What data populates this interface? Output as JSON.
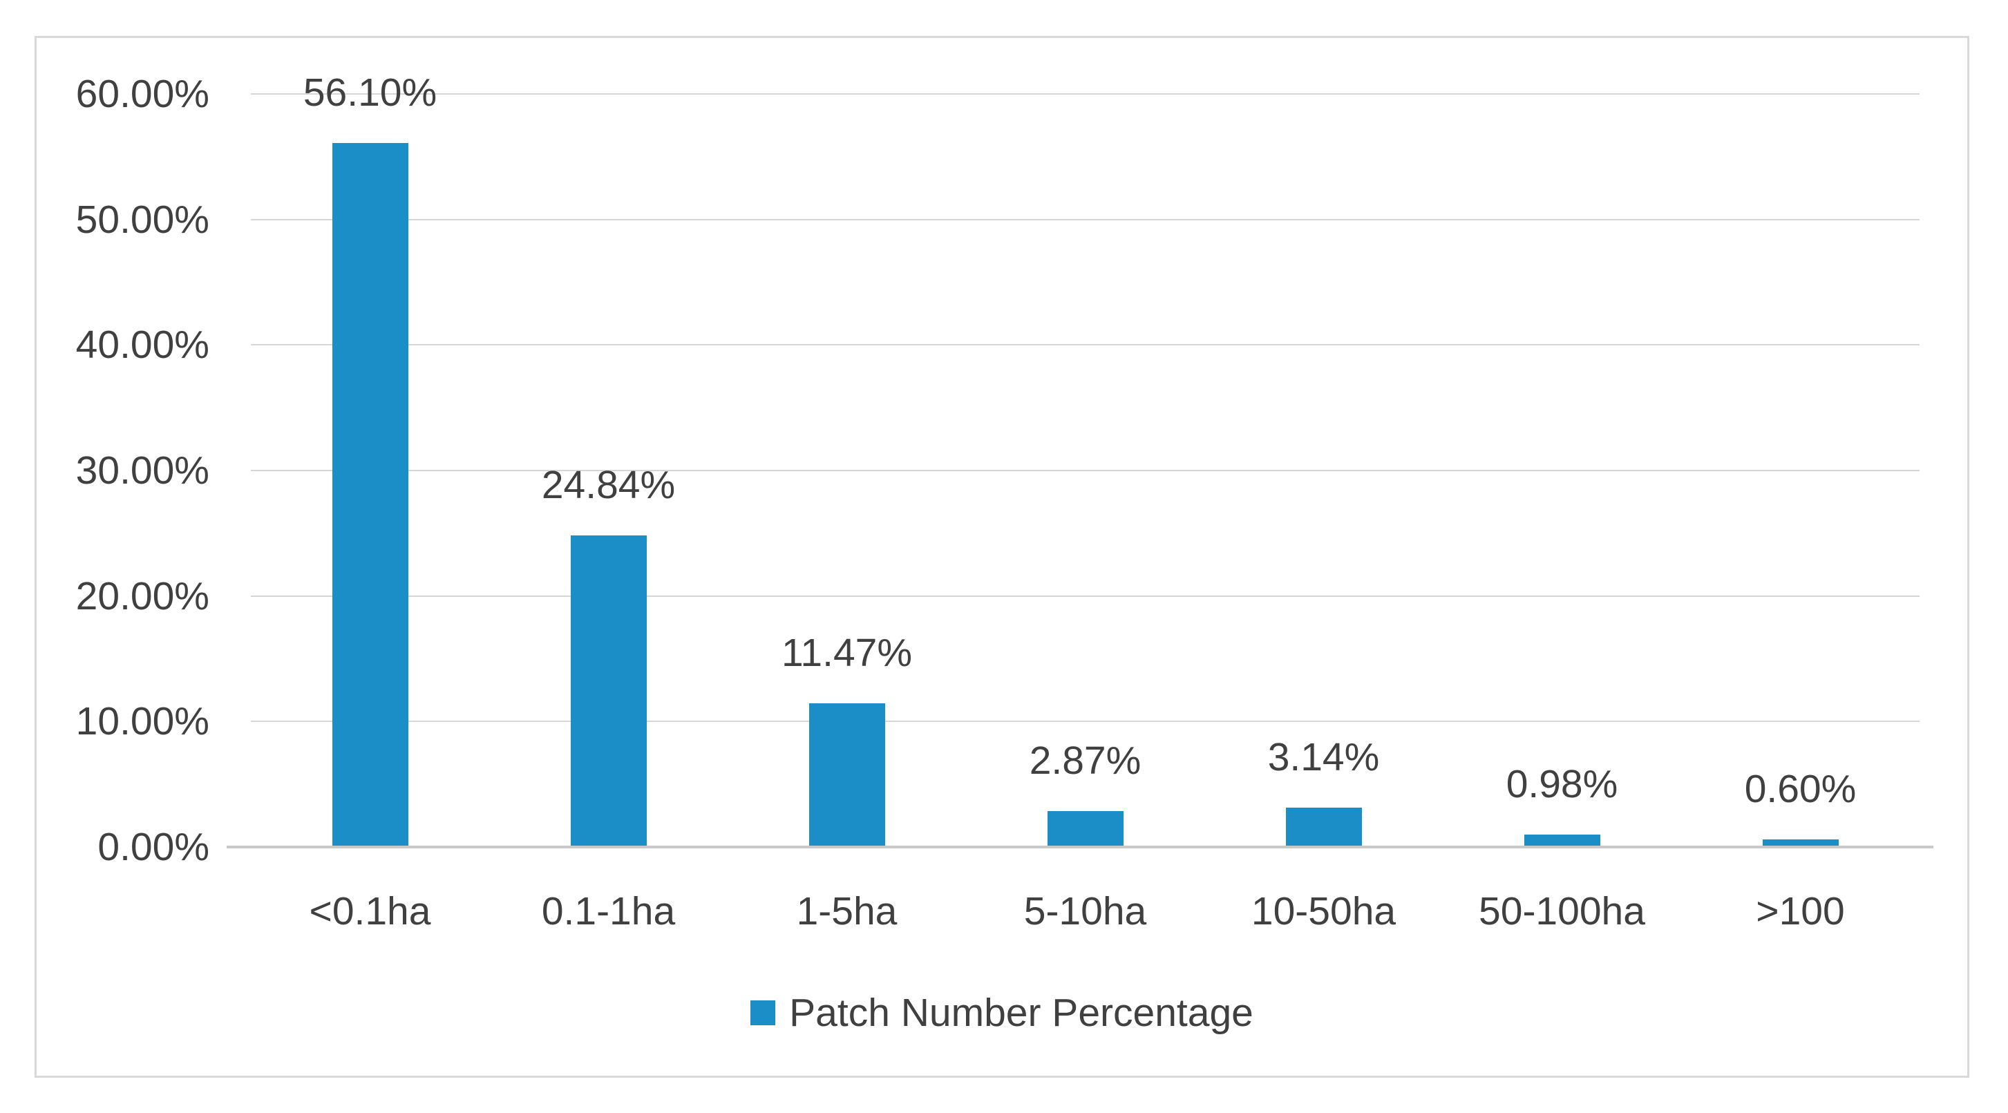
{
  "chart_data": {
    "type": "bar",
    "title": "",
    "xlabel": "",
    "ylabel": "",
    "categories": [
      "<0.1ha",
      "0.1-1ha",
      "1-5ha",
      "5-10ha",
      "10-50ha",
      "50-100ha",
      ">100"
    ],
    "values": [
      56.1,
      24.84,
      11.47,
      2.87,
      3.14,
      0.98,
      0.6
    ],
    "data_labels": [
      "56.10%",
      "24.84%",
      "11.47%",
      "2.87%",
      "3.14%",
      "0.98%",
      "0.60%"
    ],
    "series_name": "Patch Number Percentage",
    "y_ticks": [
      {
        "value": 0,
        "label": "0.00%"
      },
      {
        "value": 10,
        "label": "10.00%"
      },
      {
        "value": 20,
        "label": "20.00%"
      },
      {
        "value": 30,
        "label": "30.00%"
      },
      {
        "value": 40,
        "label": "40.00%"
      },
      {
        "value": 50,
        "label": "50.00%"
      },
      {
        "value": 60,
        "label": "60.00%"
      }
    ],
    "ylim": [
      0,
      60
    ],
    "grid": "horizontal",
    "legend_position": "bottom-center",
    "colors": {
      "bar": "#1B8EC8",
      "text": "#404040",
      "gridline": "#D6D6D6",
      "axis_line": "#C9C9C9",
      "border": "#D9D9D9",
      "background": "#FFFFFF"
    }
  },
  "legend": {
    "label": "Patch Number Percentage"
  }
}
